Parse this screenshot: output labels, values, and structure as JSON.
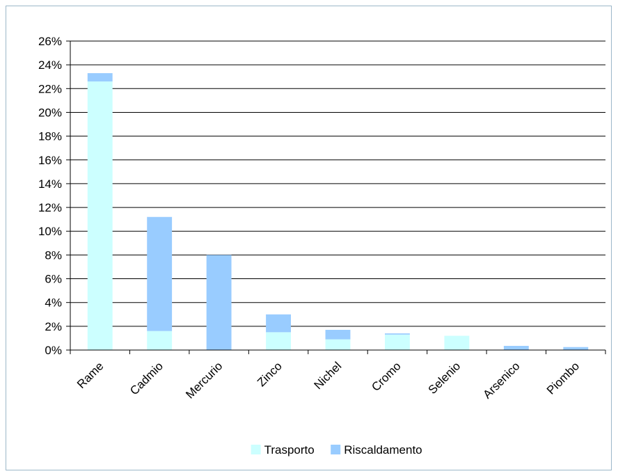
{
  "chart_data": {
    "type": "bar",
    "stacked": true,
    "categories": [
      "Rame",
      "Cadmio",
      "Mercurio",
      "Zinco",
      "Nichel",
      "Cromo",
      "Selenio",
      "Arsenico",
      "Piombo"
    ],
    "series": [
      {
        "name": "Trasporto",
        "color": "#ccffff",
        "values": [
          22.6,
          1.6,
          0.0,
          1.5,
          0.9,
          1.3,
          1.2,
          0.0,
          0.0
        ]
      },
      {
        "name": "Riscaldamento",
        "color": "#99ccff",
        "values": [
          0.7,
          9.6,
          8.0,
          1.5,
          0.8,
          0.1,
          0.0,
          0.35,
          0.25
        ]
      }
    ],
    "ylim": [
      0,
      26
    ],
    "yticks": [
      0,
      2,
      4,
      6,
      8,
      10,
      12,
      14,
      16,
      18,
      20,
      22,
      24,
      26
    ],
    "ytick_format": "%",
    "grid": true,
    "legend_position": "bottom",
    "title": "",
    "xlabel": "",
    "ylabel": ""
  }
}
